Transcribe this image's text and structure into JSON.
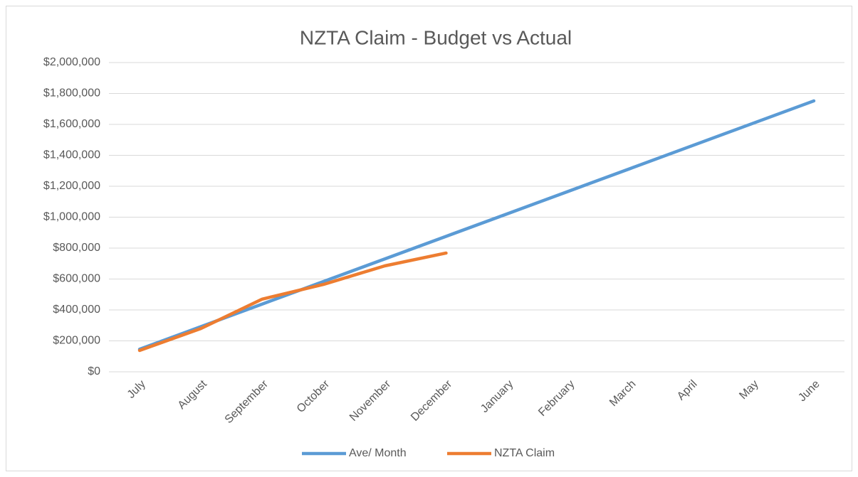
{
  "chart_data": {
    "type": "line",
    "title": "NZTA Claim - Budget vs Actual",
    "categories": [
      "July",
      "August",
      "September",
      "October",
      "November",
      "December",
      "January",
      "February",
      "March",
      "April",
      "May",
      "June"
    ],
    "series": [
      {
        "name": "Ave/ Month",
        "color": "#5b9bd5",
        "values": [
          146000,
          292000,
          438000,
          584000,
          730000,
          876000,
          1022000,
          1168000,
          1314000,
          1460000,
          1606000,
          1752000
        ]
      },
      {
        "name": "NZTA Claim",
        "color": "#ed7d31",
        "values": [
          138000,
          280000,
          470000,
          565000,
          685000,
          768000,
          null,
          null,
          null,
          null,
          null,
          null
        ]
      }
    ],
    "ylim": [
      0,
      2000000
    ],
    "yticks": [
      {
        "value": 0,
        "label": "$0"
      },
      {
        "value": 200000,
        "label": "$200,000"
      },
      {
        "value": 400000,
        "label": "$400,000"
      },
      {
        "value": 600000,
        "label": "$600,000"
      },
      {
        "value": 800000,
        "label": "$800,000"
      },
      {
        "value": 1000000,
        "label": "$1,000,000"
      },
      {
        "value": 1200000,
        "label": "$1,200,000"
      },
      {
        "value": 1400000,
        "label": "$1,400,000"
      },
      {
        "value": 1600000,
        "label": "$1,600,000"
      },
      {
        "value": 1800000,
        "label": "$1,800,000"
      },
      {
        "value": 2000000,
        "label": "$2,000,000"
      }
    ],
    "grid": true,
    "legend": "bottom"
  }
}
